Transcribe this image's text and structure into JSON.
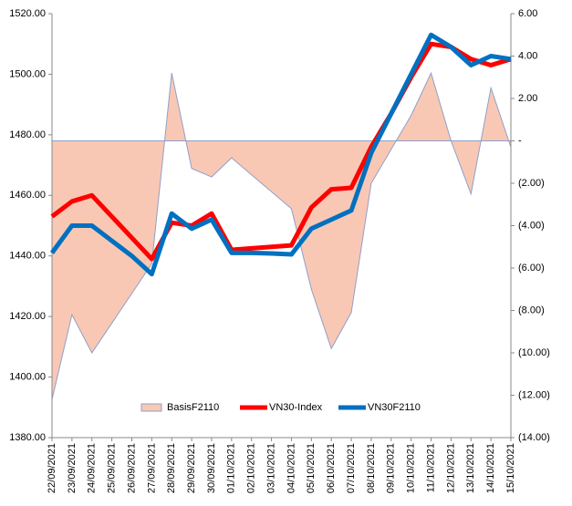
{
  "chart_data": {
    "type": "combo",
    "categories": [
      "22/09/2021",
      "23/09/2021",
      "24/09/2021",
      "25/09/2021",
      "26/09/2021",
      "27/09/2021",
      "28/09/2021",
      "29/09/2021",
      "30/09/2021",
      "01/10/2021",
      "02/10/2021",
      "03/10/2021",
      "04/10/2021",
      "05/10/2021",
      "06/10/2021",
      "07/10/2021",
      "08/10/2021",
      "09/10/2021",
      "10/10/2021",
      "11/10/2021",
      "12/10/2021",
      "13/10/2021",
      "14/10/2021",
      "15/10/2021"
    ],
    "series": [
      {
        "name": "BasisF2110",
        "type": "area",
        "axis": "y2",
        "color": "#f9c8b4",
        "edge_color": "#8ea0c8",
        "values": [
          -12.2,
          -8.2,
          -10.0,
          -8.6,
          -7.2,
          -5.8,
          3.2,
          -1.3,
          -1.7,
          -0.8,
          -1.6,
          -2.4,
          -3.2,
          -7.0,
          -9.8,
          -8.1,
          -2.0,
          -0.4,
          1.2,
          3.2,
          0.0,
          -2.5,
          2.5,
          -0.3
        ]
      },
      {
        "name": "VN30-Index",
        "type": "line",
        "axis": "y",
        "color": "#ff0000",
        "values": [
          1453,
          1458,
          1460,
          1453,
          1446,
          1439,
          1451,
          1450,
          1454,
          1442,
          1442.5,
          1443,
          1443.5,
          1456,
          1462,
          1462.5,
          1476,
          1487,
          1499,
          1510,
          1509,
          1505,
          1503,
          1505
        ]
      },
      {
        "name": "VN30F2110",
        "type": "line",
        "axis": "y",
        "color": "#0070c0",
        "values": [
          1441,
          1450,
          1450,
          1445,
          1440,
          1434,
          1454,
          1449,
          1452,
          1441,
          1441,
          1440.8,
          1440.5,
          1449,
          1452,
          1455,
          1474,
          1487,
          1500,
          1513,
          1509,
          1503,
          1506,
          1505
        ]
      }
    ],
    "ylim": [
      1380,
      1520
    ],
    "yticks": [
      {
        "value": 1380,
        "label": "1380.00"
      },
      {
        "value": 1400,
        "label": "1400.00"
      },
      {
        "value": 1420,
        "label": "1420.00"
      },
      {
        "value": 1440,
        "label": "1440.00"
      },
      {
        "value": 1460,
        "label": "1460.00"
      },
      {
        "value": 1480,
        "label": "1480.00"
      },
      {
        "value": 1500,
        "label": "1500.00"
      },
      {
        "value": 1520,
        "label": "1520.00"
      }
    ],
    "y2lim": [
      -14,
      6
    ],
    "y2ticks": [
      {
        "value": -14,
        "label": "(14.00)"
      },
      {
        "value": -12,
        "label": "(12.00)"
      },
      {
        "value": -10,
        "label": "(10.00)"
      },
      {
        "value": -8,
        "label": "(8.00)"
      },
      {
        "value": -6,
        "label": "(6.00)"
      },
      {
        "value": -4,
        "label": "(4.00)"
      },
      {
        "value": -2,
        "label": "(2.00)"
      },
      {
        "value": 0,
        "label": "-"
      },
      {
        "value": 2,
        "label": "2.00"
      },
      {
        "value": 4,
        "label": "4.00"
      },
      {
        "value": 6,
        "label": "6.00"
      }
    ],
    "legend": "bottom"
  }
}
